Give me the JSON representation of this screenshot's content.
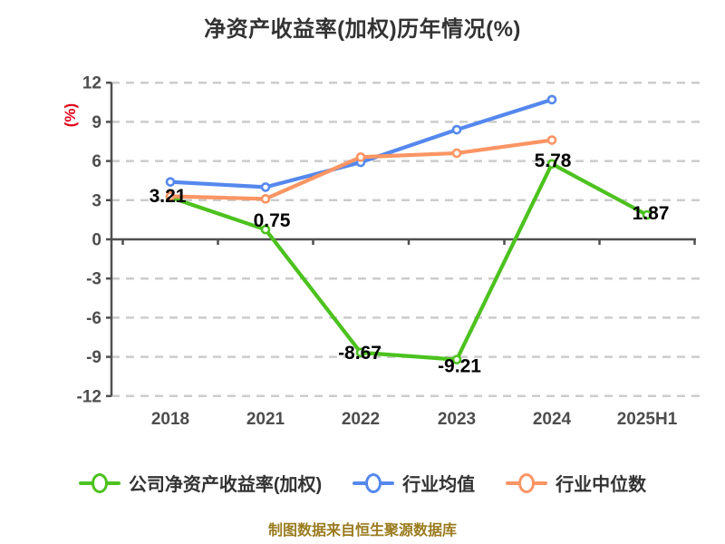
{
  "title": "净资产收益率(加权)历年情况(%)",
  "footer": "制图数据来自恒生聚源数据库",
  "colors": {
    "title_text": "#333333",
    "axis_text": "#4d4d4d",
    "axis_line": "#4f4f4f",
    "grid_line": "#cccccc",
    "value_label": "#000000",
    "y_axis_label_text": "#e3001b",
    "footer_text": "#9a7b1e",
    "legend_text": "#333333"
  },
  "chart_data": {
    "type": "line",
    "title": "净资产收益率(加权)历年情况(%)",
    "categories": [
      "2018",
      "2021",
      "2022",
      "2023",
      "2024",
      "2025H1"
    ],
    "series": [
      {
        "name": "公司净资产收益率(加权)",
        "color": "#4cc21e",
        "values": [
          3.21,
          0.75,
          -8.67,
          -9.21,
          5.78,
          1.87
        ],
        "point_labels": [
          "3.21",
          "0.75",
          "-8.67",
          "-9.21",
          "5.78",
          "1.87"
        ]
      },
      {
        "name": "行业均值",
        "color": "#5588ee",
        "values": [
          4.4,
          4.0,
          5.9,
          8.4,
          10.7,
          null
        ],
        "point_labels": null
      },
      {
        "name": "行业中位数",
        "color": "#fb9564",
        "values": [
          3.3,
          3.1,
          6.3,
          6.6,
          7.6,
          null
        ],
        "point_labels": null
      }
    ],
    "ylabel": "(%)",
    "ylim": [
      -12,
      12
    ],
    "yticks": [
      12,
      9,
      6,
      3,
      0,
      -3,
      -6,
      -9,
      -12
    ],
    "grid": true,
    "grid_style": "dashed-horizontal",
    "legend_position": "bottom",
    "x_axis_on_zero": true
  }
}
